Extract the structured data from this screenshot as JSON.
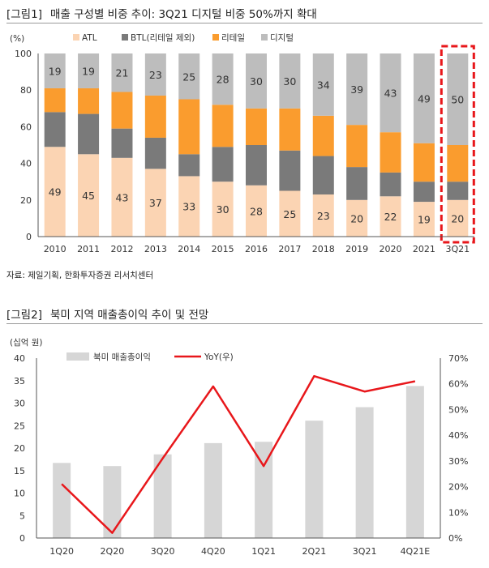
{
  "figure1": {
    "tag": "[그림1]",
    "title": "매출 구성별 비중 추이: 3Q21 디지털 비중 50%까지 확대",
    "source": "자료: 제일기획, 한화투자증권 리서치센터"
  },
  "figure2": {
    "tag": "[그림2]",
    "title": "북미 지역 매출총이익 추이 및 전망"
  },
  "colors": {
    "atl": "#FBD4B3",
    "btl": "#7A7A7A",
    "retail": "#FA9C2E",
    "digital": "#BDBDBD",
    "highlight": "#E8171B",
    "gross_bar": "#D6D6D6",
    "yoy_line": "#E8171B"
  },
  "chart_data": [
    {
      "type": "bar",
      "stacked": true,
      "yunit": "(%)",
      "ylim": [
        0,
        100
      ],
      "yticks": [
        0,
        20,
        40,
        60,
        80,
        100
      ],
      "categories": [
        "2010",
        "2011",
        "2012",
        "2013",
        "2014",
        "2015",
        "2016",
        "2017",
        "2018",
        "2019",
        "2020",
        "2021",
        "3Q21"
      ],
      "series": [
        {
          "name": "ATL",
          "key": "atl",
          "values": [
            49,
            45,
            43,
            37,
            33,
            30,
            28,
            25,
            23,
            20,
            22,
            19,
            20
          ],
          "labeled": true
        },
        {
          "name": "BTL(리테일 제외)",
          "key": "btl",
          "values": [
            19,
            22,
            16,
            17,
            12,
            19,
            22,
            22,
            21,
            18,
            13,
            11,
            10
          ],
          "labeled": false
        },
        {
          "name": "리테일",
          "key": "retail",
          "values": [
            13,
            14,
            20,
            23,
            30,
            23,
            20,
            23,
            22,
            23,
            22,
            21,
            20
          ],
          "labeled": false
        },
        {
          "name": "디지털",
          "key": "digital",
          "values": [
            19,
            19,
            21,
            23,
            25,
            28,
            30,
            30,
            34,
            39,
            43,
            49,
            50
          ],
          "labeled": true
        }
      ],
      "legend_position": "top-left",
      "highlight_category": "3Q21"
    },
    {
      "type": "bar",
      "ylabel": "(십억 원)",
      "ylim": [
        0,
        40
      ],
      "yticks": [
        0,
        5,
        10,
        15,
        20,
        25,
        30,
        35,
        40
      ],
      "y2lim": [
        0,
        70
      ],
      "y2ticks": [
        "0%",
        "10%",
        "20%",
        "30%",
        "40%",
        "50%",
        "60%",
        "70%"
      ],
      "categories": [
        "1Q20",
        "2Q20",
        "3Q20",
        "4Q20",
        "1Q21",
        "2Q21",
        "3Q21",
        "4Q21E"
      ],
      "series": [
        {
          "name": "북미 매출총이익",
          "key": "gross_bar",
          "type": "bar",
          "axis": "left",
          "values": [
            16.7,
            16.0,
            18.6,
            21.1,
            21.4,
            26.1,
            29.1,
            33.8
          ]
        },
        {
          "name": "YoY(우)",
          "key": "yoy_line",
          "type": "line",
          "axis": "right",
          "values": [
            21,
            2,
            31,
            59,
            28,
            63,
            57,
            61
          ]
        }
      ],
      "legend_position": "top-center"
    }
  ]
}
